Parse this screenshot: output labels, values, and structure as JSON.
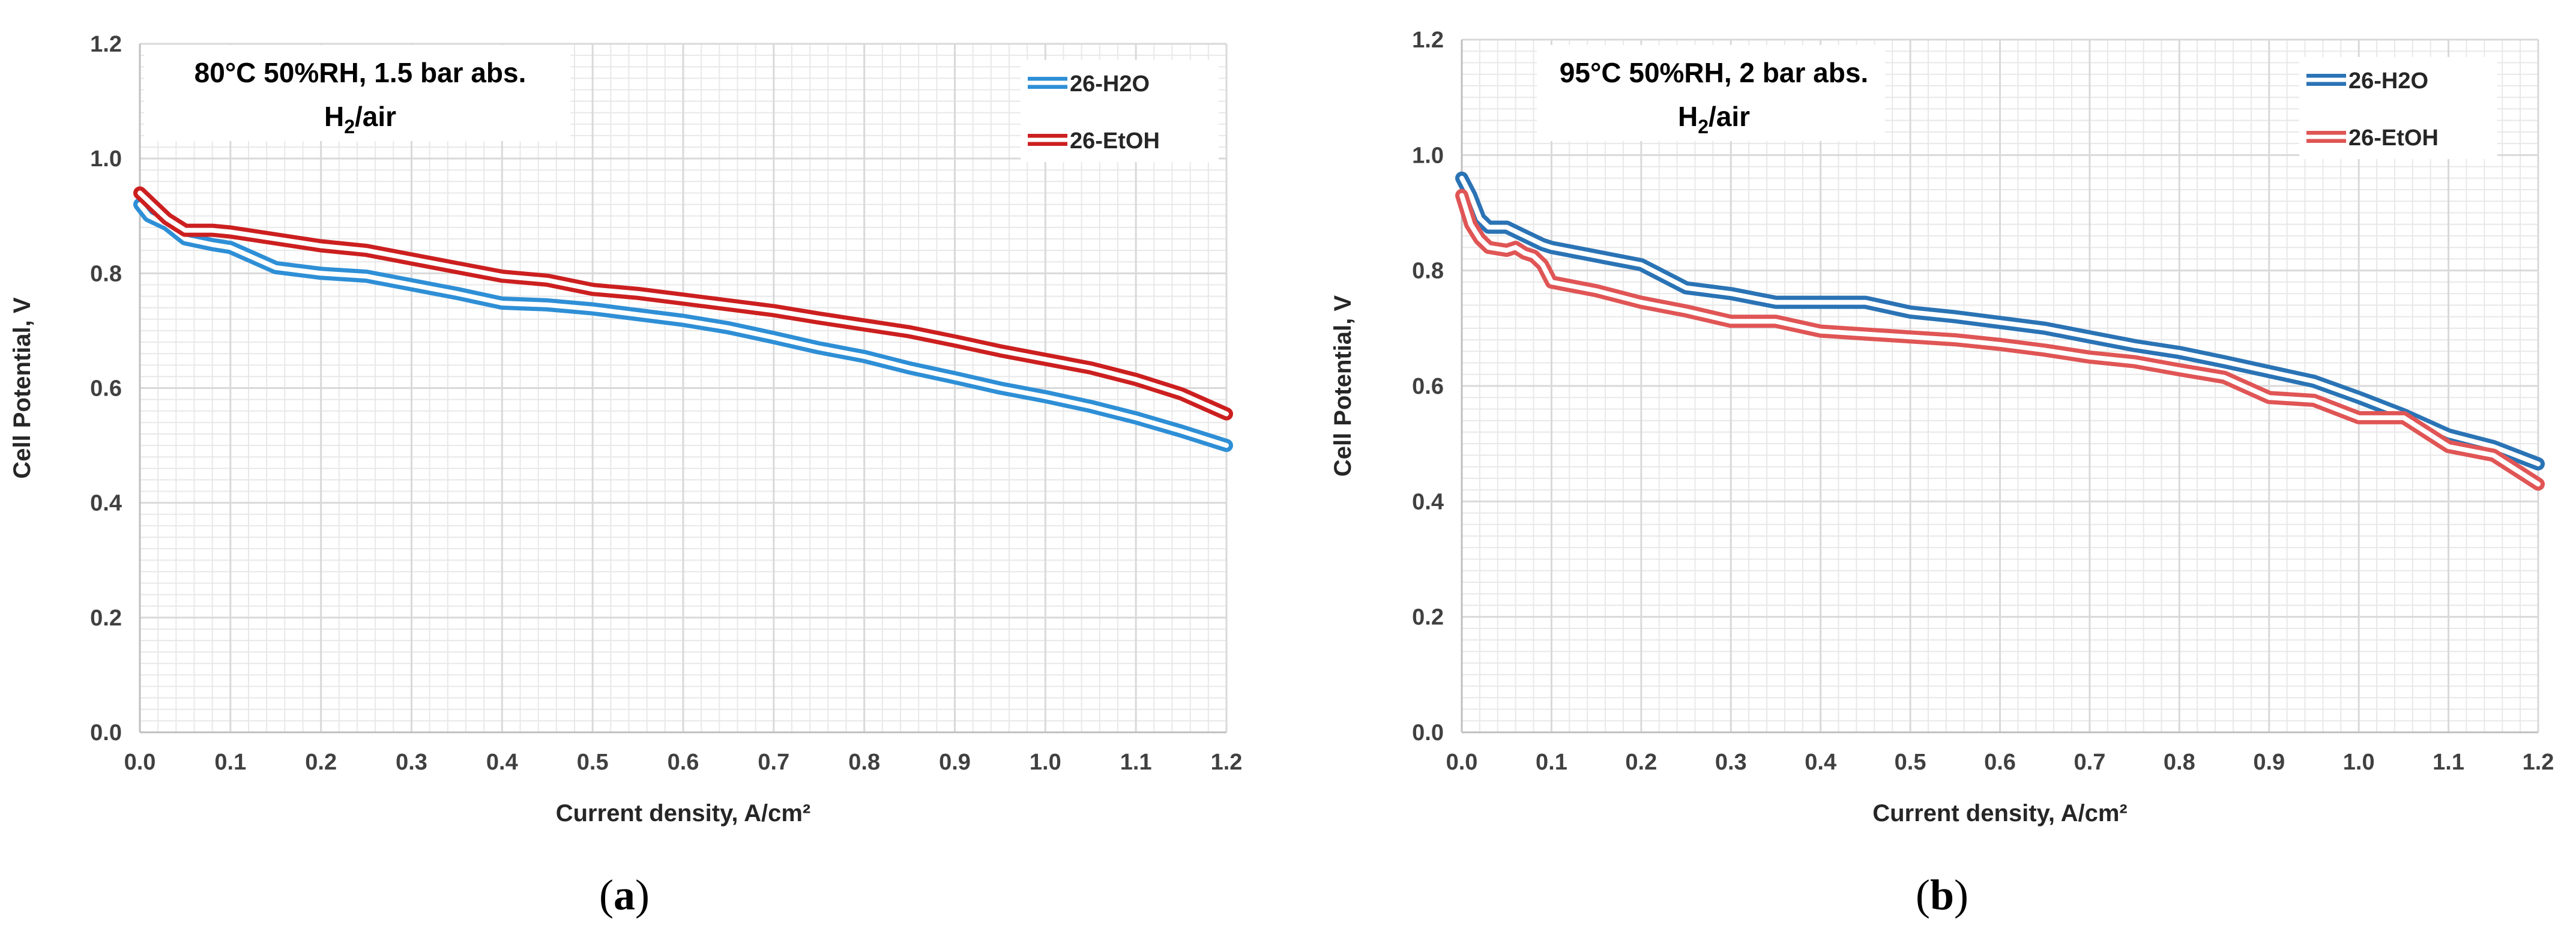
{
  "chart_data": [
    {
      "type": "line",
      "panel_label": "(a)",
      "annotation": [
        "80°C  50%RH, 1.5 bar abs.",
        "H2/air"
      ],
      "xlabel": "Current density, A/cm²",
      "ylabel": "Cell Potential, V",
      "xlim": [
        0,
        1.2
      ],
      "ylim": [
        0,
        1.2
      ],
      "xticks": [
        "0.0",
        "0.1",
        "0.2",
        "0.3",
        "0.4",
        "0.5",
        "0.6",
        "0.7",
        "0.8",
        "0.9",
        "1.0",
        "1.1",
        "1.2"
      ],
      "yticks": [
        "0.0",
        "0.2",
        "0.4",
        "0.6",
        "0.8",
        "1.0",
        "1.2"
      ],
      "grid": true,
      "legend": "top-right",
      "series": [
        {
          "name": "26-H2O",
          "color": "#2e8fd6",
          "x": [
            0.0,
            0.01,
            0.03,
            0.05,
            0.08,
            0.1,
            0.15,
            0.2,
            0.25,
            0.3,
            0.35,
            0.4,
            0.45,
            0.5,
            0.55,
            0.6,
            0.65,
            0.7,
            0.75,
            0.8,
            0.85,
            0.9,
            0.95,
            1.0,
            1.05,
            1.1,
            1.15,
            1.2
          ],
          "y": [
            0.92,
            0.9,
            0.885,
            0.86,
            0.85,
            0.845,
            0.81,
            0.8,
            0.795,
            0.78,
            0.765,
            0.748,
            0.745,
            0.738,
            0.728,
            0.718,
            0.705,
            0.688,
            0.67,
            0.655,
            0.635,
            0.618,
            0.6,
            0.585,
            0.568,
            0.548,
            0.525,
            0.5
          ]
        },
        {
          "name": "26-EtOH",
          "color": "#cc1f1f",
          "x": [
            0.0,
            0.01,
            0.03,
            0.05,
            0.08,
            0.1,
            0.15,
            0.2,
            0.25,
            0.3,
            0.35,
            0.4,
            0.45,
            0.5,
            0.55,
            0.6,
            0.65,
            0.7,
            0.75,
            0.8,
            0.85,
            0.9,
            0.95,
            1.0,
            1.05,
            1.1,
            1.15,
            1.2
          ],
          "y": [
            0.94,
            0.925,
            0.895,
            0.875,
            0.875,
            0.872,
            0.86,
            0.848,
            0.84,
            0.825,
            0.81,
            0.795,
            0.788,
            0.772,
            0.765,
            0.755,
            0.745,
            0.735,
            0.722,
            0.71,
            0.698,
            0.682,
            0.665,
            0.65,
            0.635,
            0.615,
            0.59,
            0.555
          ]
        }
      ]
    },
    {
      "type": "line",
      "panel_label": "(b)",
      "annotation": [
        "95°C  50%RH, 2 bar abs.",
        "H2/air"
      ],
      "xlabel": "Current density, A/cm²",
      "ylabel": "Cell Potential, V",
      "xlim": [
        0,
        1.2
      ],
      "ylim": [
        0,
        1.2
      ],
      "xticks": [
        "0.0",
        "0.1",
        "0.2",
        "0.3",
        "0.4",
        "0.5",
        "0.6",
        "0.7",
        "0.8",
        "0.9",
        "1.0",
        "1.1",
        "1.2"
      ],
      "yticks": [
        "0.0",
        "0.2",
        "0.4",
        "0.6",
        "0.8",
        "1.0",
        "1.2"
      ],
      "grid": true,
      "legend": "top-right",
      "series": [
        {
          "name": "26-H2O",
          "color": "#2a73b5",
          "x": [
            0.0,
            0.01,
            0.02,
            0.03,
            0.05,
            0.07,
            0.09,
            0.1,
            0.15,
            0.2,
            0.25,
            0.3,
            0.35,
            0.4,
            0.45,
            0.5,
            0.55,
            0.6,
            0.65,
            0.7,
            0.75,
            0.8,
            0.85,
            0.9,
            0.95,
            1.0,
            1.05,
            1.1,
            1.15,
            1.2
          ],
          "y": [
            0.96,
            0.93,
            0.89,
            0.875,
            0.875,
            0.86,
            0.845,
            0.84,
            0.825,
            0.81,
            0.77,
            0.76,
            0.745,
            0.745,
            0.745,
            0.728,
            0.72,
            0.71,
            0.7,
            0.685,
            0.67,
            0.658,
            0.642,
            0.625,
            0.608,
            0.58,
            0.55,
            0.515,
            0.495,
            0.465
          ]
        },
        {
          "name": "26-EtOH",
          "color": "#e05555",
          "x": [
            0.0,
            0.01,
            0.02,
            0.03,
            0.05,
            0.06,
            0.07,
            0.08,
            0.09,
            0.1,
            0.15,
            0.2,
            0.25,
            0.3,
            0.35,
            0.4,
            0.45,
            0.5,
            0.55,
            0.6,
            0.65,
            0.7,
            0.75,
            0.8,
            0.85,
            0.9,
            0.95,
            1.0,
            1.05,
            1.1,
            1.15,
            1.2
          ],
          "y": [
            0.93,
            0.88,
            0.855,
            0.84,
            0.835,
            0.84,
            0.83,
            0.825,
            0.81,
            0.78,
            0.765,
            0.745,
            0.73,
            0.712,
            0.712,
            0.695,
            0.69,
            0.685,
            0.68,
            0.672,
            0.662,
            0.65,
            0.642,
            0.628,
            0.615,
            0.58,
            0.575,
            0.545,
            0.545,
            0.495,
            0.48,
            0.43
          ]
        }
      ]
    }
  ]
}
